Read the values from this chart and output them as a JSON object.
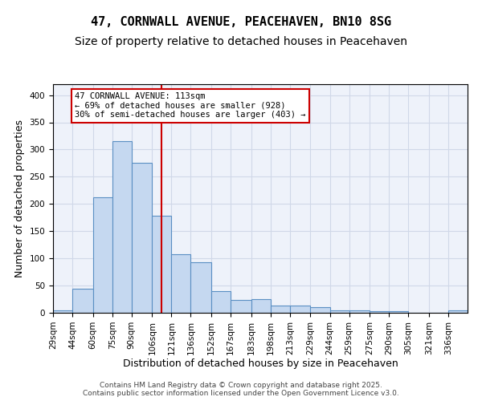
{
  "title_line1": "47, CORNWALL AVENUE, PEACEHAVEN, BN10 8SG",
  "title_line2": "Size of property relative to detached houses in Peacehaven",
  "xlabel": "Distribution of detached houses by size in Peacehaven",
  "ylabel": "Number of detached properties",
  "bar_edges": [
    29,
    44,
    60,
    75,
    90,
    106,
    121,
    136,
    152,
    167,
    183,
    198,
    213,
    229,
    244,
    259,
    275,
    290,
    305,
    321,
    336,
    351
  ],
  "bar_heights": [
    5,
    44,
    212,
    315,
    275,
    178,
    107,
    93,
    40,
    24,
    25,
    14,
    13,
    11,
    5,
    5,
    3,
    3,
    0,
    0,
    4
  ],
  "bar_color": "#c5d8f0",
  "bar_edge_color": "#5a8fc3",
  "bar_linewidth": 0.8,
  "red_line_x": 113,
  "annotation_box_text": "47 CORNWALL AVENUE: 113sqm\n← 69% of detached houses are smaller (928)\n30% of semi-detached houses are larger (403) →",
  "annotation_box_color": "#ffffff",
  "annotation_box_edge_color": "#cc0000",
  "annotation_fontsize": 7.5,
  "red_line_color": "#cc0000",
  "red_line_linewidth": 1.5,
  "ylim": [
    0,
    420
  ],
  "yticks": [
    0,
    50,
    100,
    150,
    200,
    250,
    300,
    350,
    400
  ],
  "tick_labels": [
    "29sqm",
    "44sqm",
    "60sqm",
    "75sqm",
    "90sqm",
    "106sqm",
    "121sqm",
    "136sqm",
    "152sqm",
    "167sqm",
    "183sqm",
    "198sqm",
    "213sqm",
    "229sqm",
    "244sqm",
    "259sqm",
    "275sqm",
    "290sqm",
    "305sqm",
    "321sqm",
    "336sqm"
  ],
  "grid_color": "#d0d8e8",
  "background_color": "#eef2fa",
  "footer_text": "Contains HM Land Registry data © Crown copyright and database right 2025.\nContains public sector information licensed under the Open Government Licence v3.0.",
  "title_fontsize": 11,
  "subtitle_fontsize": 10,
  "xlabel_fontsize": 9,
  "ylabel_fontsize": 9,
  "tick_fontsize": 7.5,
  "footer_fontsize": 6.5
}
